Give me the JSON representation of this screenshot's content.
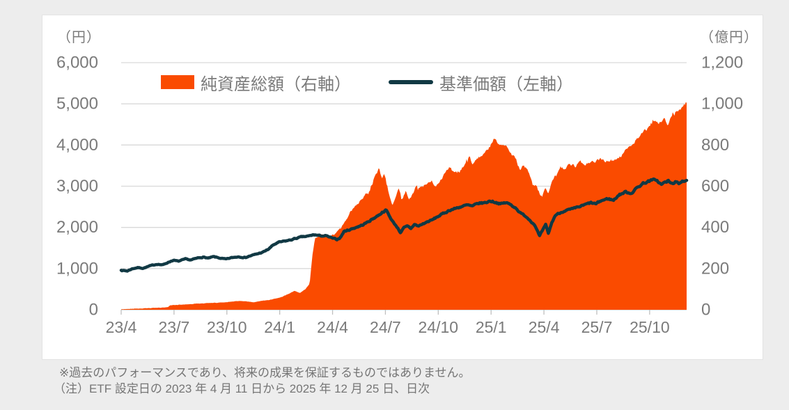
{
  "notes": [
    "※過去のパフォーマンスであり、将来の成果を保証するものではありません。",
    "（注）ETF 設定日の 2023 年 4 月 11 日から 2025 年 12 月 25 日、日次"
  ],
  "colors": {
    "area": "#FA4B00",
    "line": "#113944",
    "gridline": "#D9D9D9",
    "axis_line": "#C9C9C9",
    "tick_mark": "#BFBFBF",
    "axis_text": "#7A7A7A",
    "card_background": "#FFFFFF",
    "page_background": "#EDEDED"
  },
  "chart_data": {
    "type": "combo",
    "left_axis": {
      "unit_label": "（円）",
      "max": 6000,
      "step": 1000,
      "tick_labels": [
        "6,000",
        "5,000",
        "4,000",
        "3,000",
        "2,000",
        "1,000",
        "0"
      ]
    },
    "right_axis": {
      "unit_label": "（億円）",
      "max": 1200,
      "step": 200,
      "tick_labels": [
        "1,200",
        "1,000",
        "800",
        "600",
        "400",
        "200",
        "0"
      ]
    },
    "x_axis": {
      "domain": [
        0.35,
        32.45
      ],
      "tick_months": [
        0.35,
        3.35,
        6.35,
        9.35,
        12.35,
        15.35,
        18.35,
        21.35,
        24.35,
        27.35,
        30.35
      ],
      "tick_labels": [
        "23/4",
        "23/7",
        "23/10",
        "24/1",
        "24/4",
        "24/7",
        "24/10",
        "25/1",
        "25/4",
        "25/7",
        "25/10"
      ],
      "period": "2023/4/11 - 2025/12/25",
      "frequency": "daily"
    },
    "grid": "horizontal-only",
    "legend_position": "top-center",
    "series": [
      {
        "name": "純資産総額（右軸）",
        "type": "area",
        "axis": "right",
        "unit": "億円",
        "color": "#FA4B00",
        "points": [
          [
            0.35,
            2
          ],
          [
            1,
            5
          ],
          [
            1.5,
            6
          ],
          [
            2,
            8
          ],
          [
            2.6,
            10
          ],
          [
            3,
            13
          ],
          [
            3.15,
            22
          ],
          [
            3.6,
            24
          ],
          [
            4,
            26
          ],
          [
            4.5,
            29
          ],
          [
            5,
            31
          ],
          [
            5.5,
            33
          ],
          [
            6,
            35
          ],
          [
            6.5,
            38
          ],
          [
            7,
            43
          ],
          [
            7.5,
            40
          ],
          [
            7.85,
            36
          ],
          [
            8.3,
            43
          ],
          [
            8.7,
            47
          ],
          [
            9,
            52
          ],
          [
            9.4,
            60
          ],
          [
            9.8,
            75
          ],
          [
            10.2,
            92
          ],
          [
            10.5,
            82
          ],
          [
            10.8,
            100
          ],
          [
            11.05,
            125
          ],
          [
            11.2,
            260
          ],
          [
            11.35,
            350
          ],
          [
            11.6,
            362
          ],
          [
            11.9,
            371
          ],
          [
            12.1,
            357
          ],
          [
            12.4,
            366
          ],
          [
            12.7,
            383
          ],
          [
            13,
            415
          ],
          [
            13.3,
            468
          ],
          [
            13.6,
            498
          ],
          [
            13.9,
            528
          ],
          [
            14.2,
            558
          ],
          [
            14.5,
            592
          ],
          [
            14.75,
            648
          ],
          [
            15.0,
            686
          ],
          [
            15.15,
            630
          ],
          [
            15.3,
            656
          ],
          [
            15.5,
            580
          ],
          [
            15.75,
            508
          ],
          [
            16.0,
            560
          ],
          [
            16.1,
            585
          ],
          [
            16.3,
            540
          ],
          [
            16.5,
            578
          ],
          [
            16.7,
            535
          ],
          [
            16.9,
            558
          ],
          [
            17.1,
            600
          ],
          [
            17.4,
            592
          ],
          [
            17.7,
            610
          ],
          [
            18.0,
            622
          ],
          [
            18.2,
            598
          ],
          [
            18.5,
            632
          ],
          [
            18.8,
            680
          ],
          [
            19.0,
            702
          ],
          [
            19.25,
            660
          ],
          [
            19.55,
            672
          ],
          [
            19.85,
            710
          ],
          [
            20.1,
            752
          ],
          [
            20.3,
            706
          ],
          [
            20.65,
            736
          ],
          [
            21.0,
            760
          ],
          [
            21.3,
            788
          ],
          [
            21.5,
            828
          ],
          [
            21.7,
            806
          ],
          [
            21.95,
            814
          ],
          [
            22.25,
            788
          ],
          [
            22.55,
            750
          ],
          [
            22.8,
            722
          ],
          [
            23.0,
            680
          ],
          [
            23.2,
            705
          ],
          [
            23.45,
            676
          ],
          [
            23.7,
            606
          ],
          [
            23.95,
            600
          ],
          [
            24.1,
            560
          ],
          [
            24.25,
            548
          ],
          [
            24.4,
            592
          ],
          [
            24.6,
            568
          ],
          [
            24.8,
            620
          ],
          [
            25.05,
            660
          ],
          [
            25.3,
            692
          ],
          [
            25.55,
            686
          ],
          [
            25.85,
            706
          ],
          [
            26.15,
            696
          ],
          [
            26.45,
            716
          ],
          [
            26.75,
            708
          ],
          [
            27.05,
            715
          ],
          [
            27.35,
            723
          ],
          [
            27.65,
            733
          ],
          [
            27.95,
            720
          ],
          [
            28.25,
            727
          ],
          [
            28.55,
            740
          ],
          [
            28.85,
            756
          ],
          [
            29.15,
            790
          ],
          [
            29.45,
            814
          ],
          [
            29.75,
            844
          ],
          [
            30.05,
            865
          ],
          [
            30.35,
            892
          ],
          [
            30.6,
            920
          ],
          [
            30.85,
            896
          ],
          [
            31.1,
            930
          ],
          [
            31.4,
            908
          ],
          [
            31.65,
            950
          ],
          [
            31.9,
            968
          ],
          [
            32.15,
            984
          ],
          [
            32.45,
            1005
          ]
        ]
      },
      {
        "name": "基準価額（左軸）",
        "type": "line",
        "axis": "left",
        "unit": "円",
        "color": "#113944",
        "points": [
          [
            0.35,
            958
          ],
          [
            0.7,
            942
          ],
          [
            1.0,
            998
          ],
          [
            1.3,
            1024
          ],
          [
            1.6,
            1008
          ],
          [
            2.0,
            1068
          ],
          [
            2.4,
            1108
          ],
          [
            2.7,
            1088
          ],
          [
            3.0,
            1148
          ],
          [
            3.3,
            1202
          ],
          [
            3.6,
            1178
          ],
          [
            4.0,
            1232
          ],
          [
            4.3,
            1208
          ],
          [
            4.7,
            1258
          ],
          [
            5.0,
            1278
          ],
          [
            5.3,
            1252
          ],
          [
            5.6,
            1288
          ],
          [
            6.0,
            1250
          ],
          [
            6.3,
            1228
          ],
          [
            6.6,
            1262
          ],
          [
            7.0,
            1288
          ],
          [
            7.4,
            1268
          ],
          [
            7.7,
            1312
          ],
          [
            8.0,
            1348
          ],
          [
            8.4,
            1398
          ],
          [
            8.7,
            1468
          ],
          [
            9.0,
            1578
          ],
          [
            9.3,
            1638
          ],
          [
            9.6,
            1662
          ],
          [
            10.0,
            1698
          ],
          [
            10.3,
            1738
          ],
          [
            10.6,
            1768
          ],
          [
            11.0,
            1788
          ],
          [
            11.3,
            1822
          ],
          [
            11.6,
            1798
          ],
          [
            12.0,
            1792
          ],
          [
            12.3,
            1742
          ],
          [
            12.6,
            1705
          ],
          [
            12.8,
            1758
          ],
          [
            13.0,
            1902
          ],
          [
            13.3,
            1942
          ],
          [
            13.6,
            1988
          ],
          [
            14.0,
            2048
          ],
          [
            14.3,
            2118
          ],
          [
            14.6,
            2198
          ],
          [
            15.0,
            2308
          ],
          [
            15.2,
            2378
          ],
          [
            15.4,
            2418
          ],
          [
            15.6,
            2258
          ],
          [
            15.8,
            2118
          ],
          [
            16.0,
            2018
          ],
          [
            16.2,
            1878
          ],
          [
            16.4,
            1988
          ],
          [
            16.6,
            2028
          ],
          [
            16.8,
            1972
          ],
          [
            17.0,
            2078
          ],
          [
            17.2,
            2028
          ],
          [
            17.5,
            2088
          ],
          [
            17.8,
            2148
          ],
          [
            18.0,
            2178
          ],
          [
            18.3,
            2258
          ],
          [
            18.6,
            2328
          ],
          [
            19.0,
            2418
          ],
          [
            19.3,
            2458
          ],
          [
            19.6,
            2498
          ],
          [
            20.0,
            2542
          ],
          [
            20.3,
            2512
          ],
          [
            20.6,
            2582
          ],
          [
            21.0,
            2598
          ],
          [
            21.3,
            2642
          ],
          [
            21.6,
            2612
          ],
          [
            21.9,
            2568
          ],
          [
            22.2,
            2602
          ],
          [
            22.5,
            2542
          ],
          [
            22.8,
            2458
          ],
          [
            23.0,
            2348
          ],
          [
            23.3,
            2278
          ],
          [
            23.6,
            2158
          ],
          [
            23.85,
            2048
          ],
          [
            24.1,
            1788
          ],
          [
            24.3,
            1948
          ],
          [
            24.45,
            2058
          ],
          [
            24.6,
            1852
          ],
          [
            24.8,
            2118
          ],
          [
            25.0,
            2298
          ],
          [
            25.5,
            2402
          ],
          [
            26.0,
            2448
          ],
          [
            26.5,
            2522
          ],
          [
            27.0,
            2598
          ],
          [
            27.3,
            2568
          ],
          [
            27.6,
            2648
          ],
          [
            28.0,
            2698
          ],
          [
            28.3,
            2658
          ],
          [
            28.6,
            2788
          ],
          [
            29.0,
            2862
          ],
          [
            29.3,
            2828
          ],
          [
            29.6,
            2948
          ],
          [
            30.0,
            3078
          ],
          [
            30.3,
            3118
          ],
          [
            30.7,
            3168
          ],
          [
            31.0,
            3038
          ],
          [
            31.2,
            3088
          ],
          [
            31.4,
            3128
          ],
          [
            31.6,
            3058
          ],
          [
            31.8,
            3108
          ],
          [
            32.0,
            3048
          ],
          [
            32.2,
            3138
          ],
          [
            32.45,
            3142
          ]
        ]
      }
    ]
  }
}
